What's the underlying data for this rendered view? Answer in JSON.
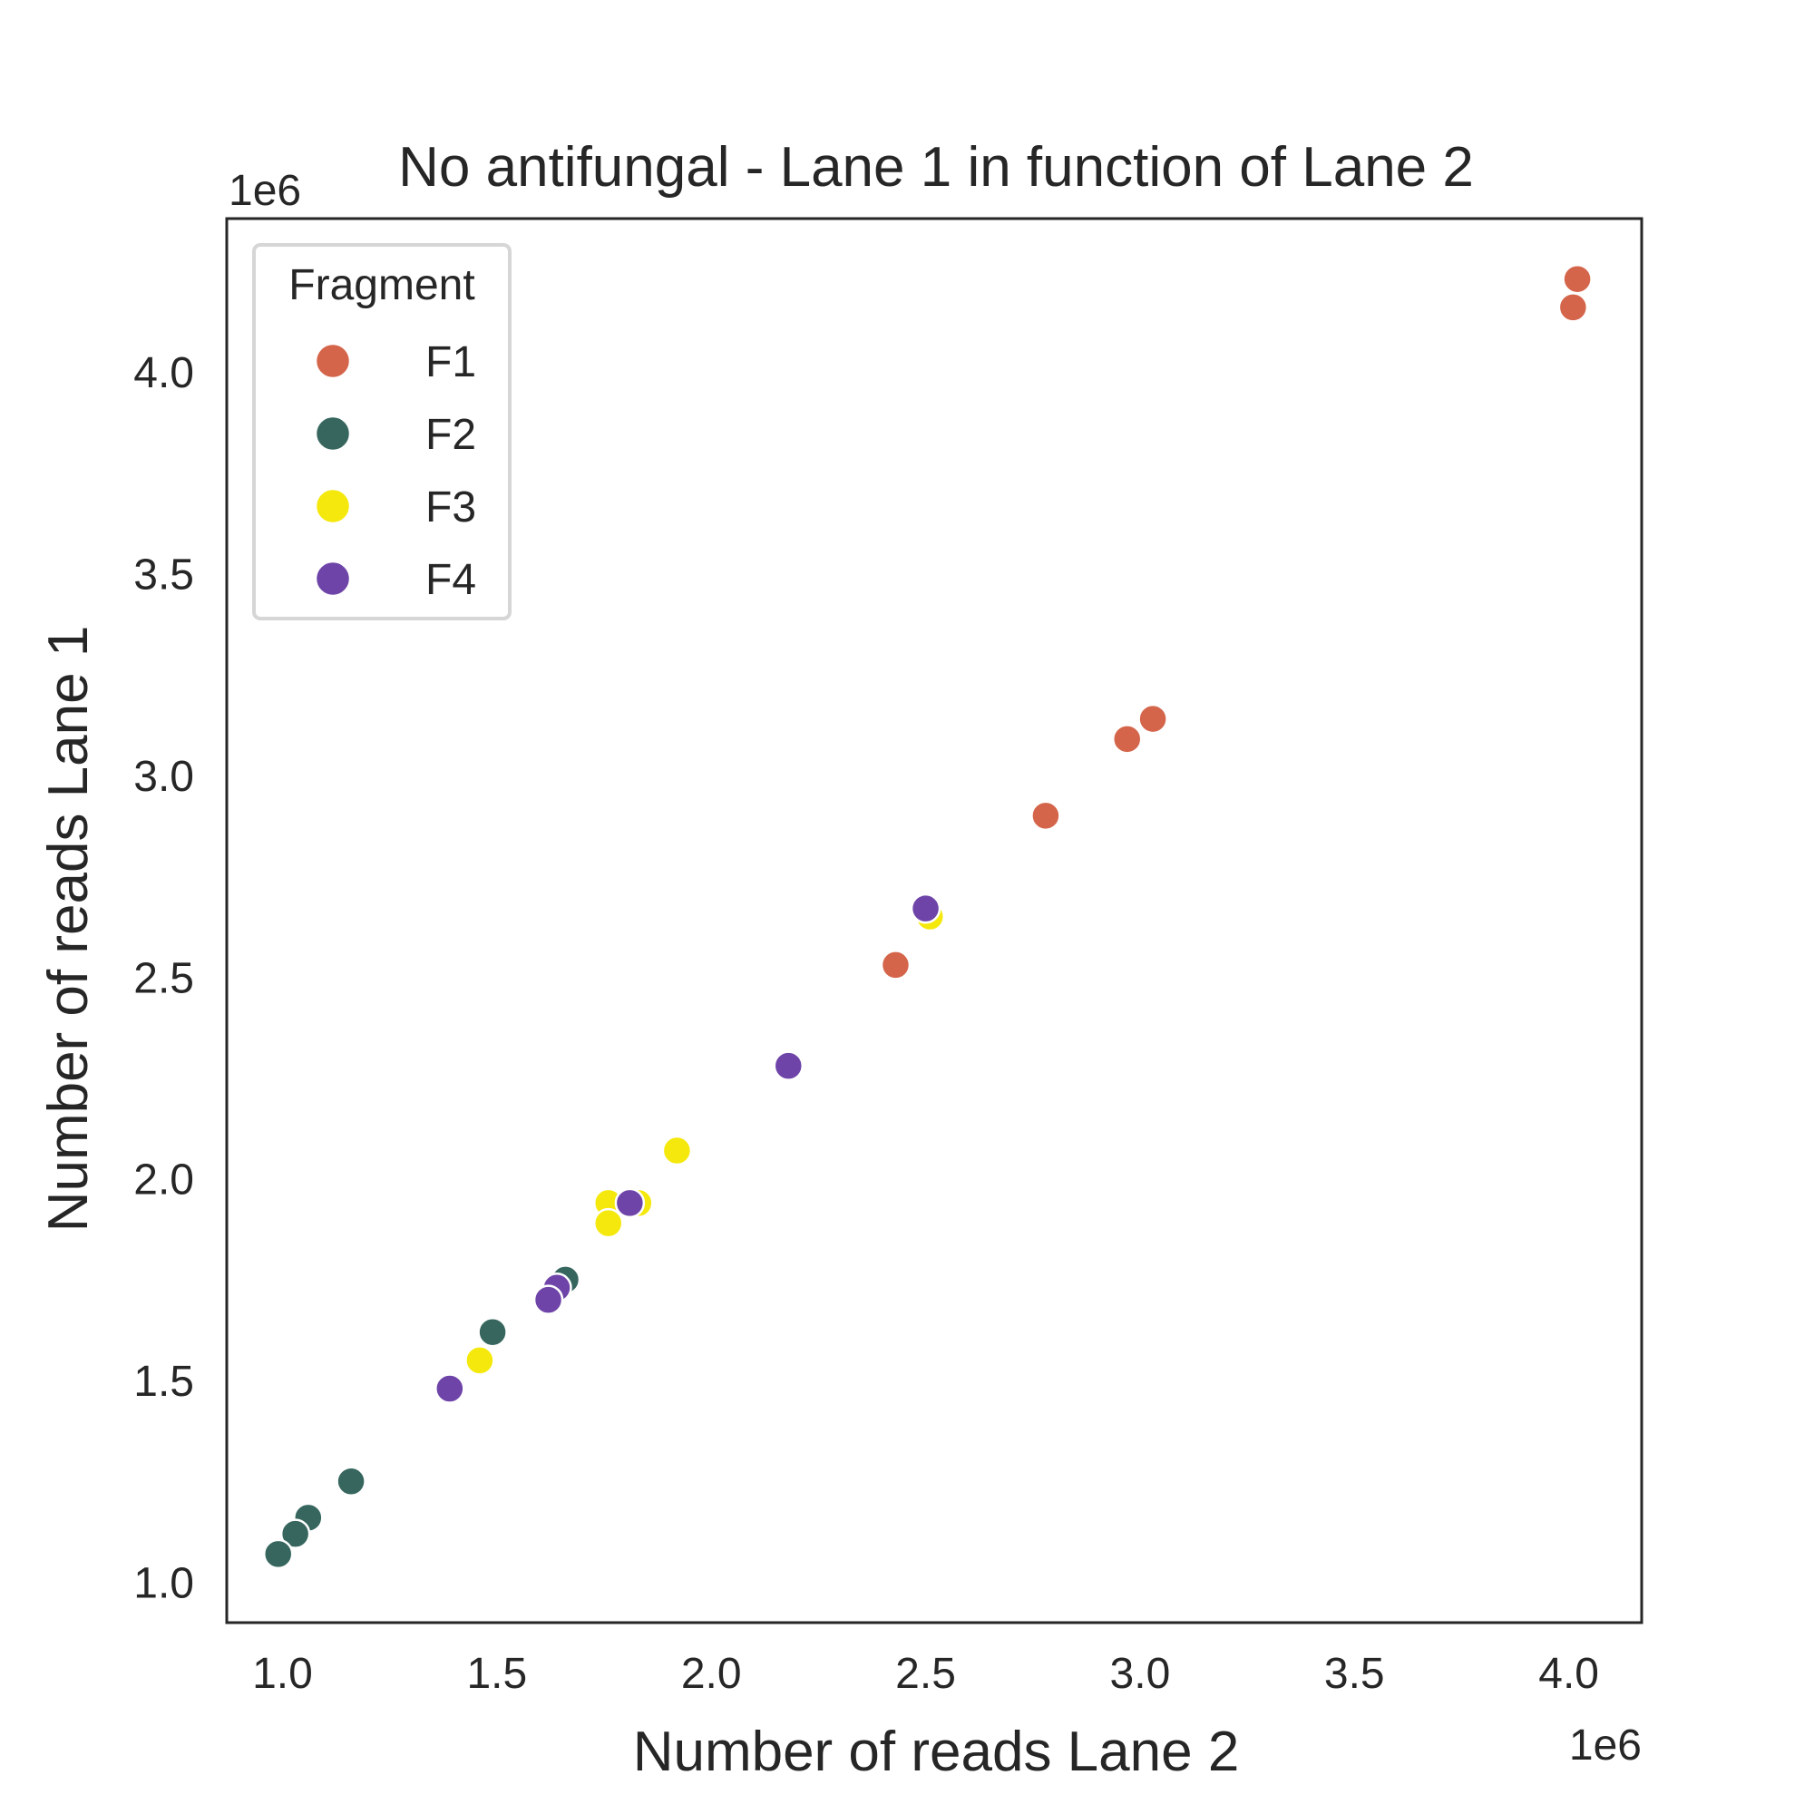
{
  "chart_data": {
    "type": "scatter",
    "title": "No antifungal - Lane 1 in function of Lane 2",
    "xlabel": "Number of reads Lane 2",
    "ylabel": "Number of reads Lane 1",
    "x_offset_label": "1e6",
    "y_offset_label": "1e6",
    "xlim": [
      0.87,
      4.17
    ],
    "ylim": [
      0.9,
      4.38
    ],
    "xticks": [
      1.0,
      1.5,
      2.0,
      2.5,
      3.0,
      3.5,
      4.0
    ],
    "xtick_labels": [
      "1.0",
      "1.5",
      "2.0",
      "2.5",
      "3.0",
      "3.5",
      "4.0"
    ],
    "yticks": [
      1.0,
      1.5,
      2.0,
      2.5,
      3.0,
      3.5,
      4.0
    ],
    "ytick_labels": [
      "1.0",
      "1.5",
      "2.0",
      "2.5",
      "3.0",
      "3.5",
      "4.0"
    ],
    "grid": false,
    "legend": {
      "title": "Fragment",
      "placement": "top-left"
    },
    "series": [
      {
        "name": "F1",
        "color": "#d4654a",
        "points": [
          [
            4.02,
            4.23
          ],
          [
            4.01,
            4.16
          ],
          [
            3.03,
            3.14
          ],
          [
            2.97,
            3.09
          ],
          [
            2.78,
            2.9
          ],
          [
            2.43,
            2.53
          ]
        ]
      },
      {
        "name": "F2",
        "color": "#36665e",
        "points": [
          [
            1.66,
            1.75
          ],
          [
            1.49,
            1.62
          ],
          [
            1.16,
            1.25
          ],
          [
            1.06,
            1.16
          ],
          [
            1.03,
            1.12
          ],
          [
            0.99,
            1.07
          ]
        ]
      },
      {
        "name": "F3",
        "color": "#f5e80c",
        "points": [
          [
            2.51,
            2.65
          ],
          [
            1.92,
            2.07
          ],
          [
            1.83,
            1.94
          ],
          [
            1.76,
            1.94
          ],
          [
            1.76,
            1.89
          ],
          [
            1.46,
            1.55
          ]
        ]
      },
      {
        "name": "F4",
        "color": "#6e44a8",
        "points": [
          [
            2.5,
            2.67
          ],
          [
            2.18,
            2.28
          ],
          [
            1.81,
            1.94
          ],
          [
            1.64,
            1.73
          ],
          [
            1.62,
            1.7
          ],
          [
            1.39,
            1.48
          ]
        ]
      }
    ]
  }
}
